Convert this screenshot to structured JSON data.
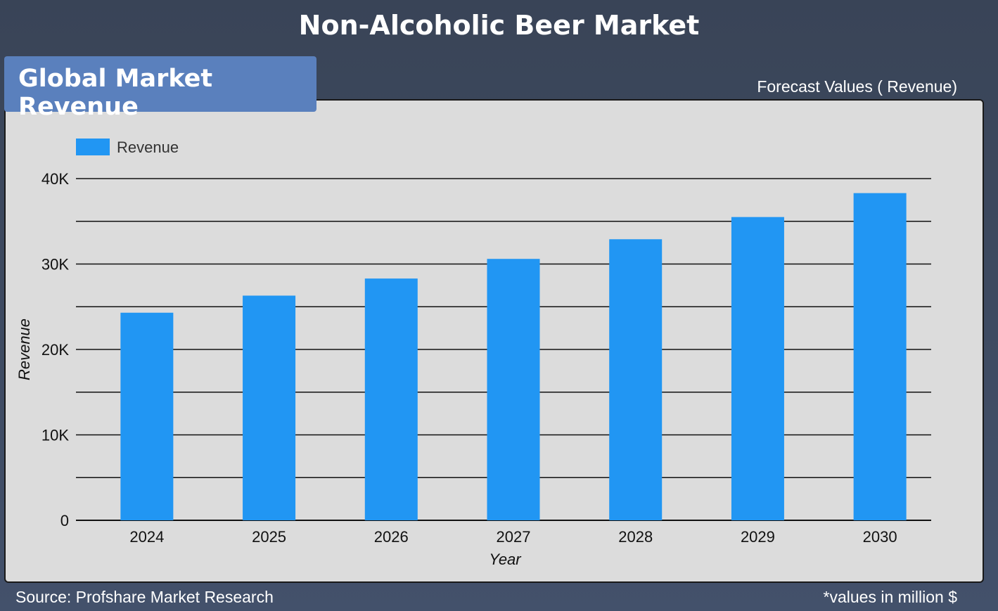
{
  "page": {
    "title": "Non-Alcoholic Beer Market",
    "badge": "Global Market Revenue",
    "forecast_label": "Forecast Values ( Revenue)",
    "source": "Source: Profshare Market Research",
    "unit_note": "*values in million $"
  },
  "colors": {
    "bar": "#2196f3",
    "badge": "#5a80bd",
    "panel": "#dcdcdc",
    "background": "#3d4860"
  },
  "chart_data": {
    "type": "bar",
    "categories": [
      "2024",
      "2025",
      "2026",
      "2027",
      "2028",
      "2029",
      "2030"
    ],
    "series": [
      {
        "name": "Revenue",
        "values": [
          24300,
          26300,
          28300,
          30600,
          32900,
          35500,
          38300
        ]
      }
    ],
    "xlabel": "Year",
    "ylabel": "Revenue",
    "ylim": [
      0,
      40000
    ],
    "yticks": [
      0,
      10000,
      20000,
      30000,
      40000
    ],
    "ytick_labels": [
      "0",
      "10K",
      "20K",
      "30K",
      "40K"
    ],
    "grid": true,
    "legend": "top-left"
  }
}
